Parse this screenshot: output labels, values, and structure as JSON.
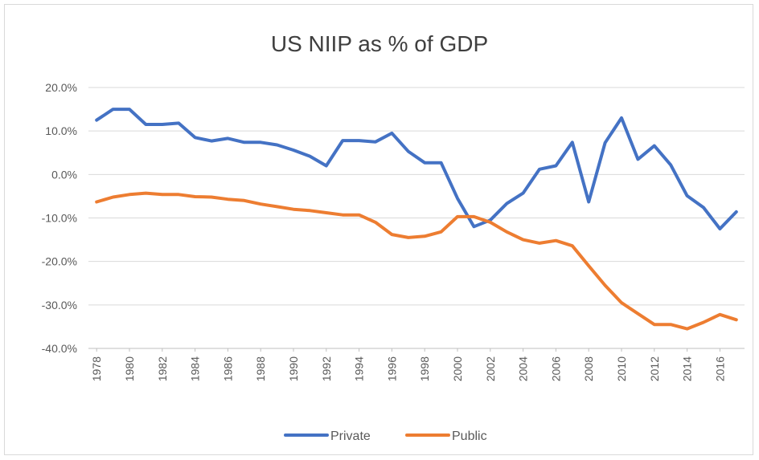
{
  "chart_data": {
    "type": "line",
    "title": "US NIIP as % of GDP",
    "xlabel": "",
    "ylabel": "",
    "ylim": [
      -40,
      20
    ],
    "y_ticks": [
      "20.0%",
      "10.0%",
      "0.0%",
      "-10.0%",
      "-20.0%",
      "-30.0%",
      "-40.0%"
    ],
    "x_tick_labels": [
      "1978",
      "1980",
      "1982",
      "1984",
      "1986",
      "1988",
      "1990",
      "1992",
      "1994",
      "1996",
      "1998",
      "2000",
      "2002",
      "2004",
      "2006",
      "2008",
      "2010",
      "2012",
      "2014",
      "2016"
    ],
    "x": [
      1978,
      1979,
      1980,
      1981,
      1982,
      1983,
      1984,
      1985,
      1986,
      1987,
      1988,
      1989,
      1990,
      1991,
      1992,
      1993,
      1994,
      1995,
      1996,
      1997,
      1998,
      1999,
      2000,
      2001,
      2002,
      2003,
      2004,
      2005,
      2006,
      2007,
      2008,
      2009,
      2010,
      2011,
      2012,
      2013,
      2014,
      2015,
      2016,
      2017
    ],
    "grid": true,
    "legend_position": "bottom",
    "series": [
      {
        "name": "Private",
        "color": "#4472c4",
        "values": [
          12.5,
          15.0,
          15.0,
          11.5,
          11.5,
          11.8,
          8.5,
          7.7,
          8.3,
          7.4,
          7.4,
          6.8,
          5.6,
          4.2,
          2.0,
          7.8,
          7.8,
          7.5,
          9.5,
          5.3,
          2.7,
          2.7,
          -5.5,
          -12.0,
          -10.5,
          -6.7,
          -4.3,
          1.2,
          2.0,
          7.4,
          -6.3,
          7.3,
          13.0,
          3.5,
          6.6,
          2.2,
          -4.9,
          -7.6,
          -12.5,
          -8.6
        ]
      },
      {
        "name": "Public",
        "color": "#ed7d31",
        "values": [
          -6.3,
          -5.2,
          -4.6,
          -4.3,
          -4.6,
          -4.6,
          -5.1,
          -5.2,
          -5.7,
          -6.0,
          -6.8,
          -7.4,
          -8.0,
          -8.3,
          -8.8,
          -9.3,
          -9.3,
          -11.0,
          -13.8,
          -14.5,
          -14.2,
          -13.2,
          -9.7,
          -9.7,
          -11.0,
          -13.2,
          -15.0,
          -15.8,
          -15.2,
          -16.4,
          -21.0,
          -25.5,
          -29.5,
          -32.0,
          -34.5,
          -34.5,
          -35.5,
          -34.0,
          -32.2,
          -33.4
        ]
      }
    ]
  }
}
